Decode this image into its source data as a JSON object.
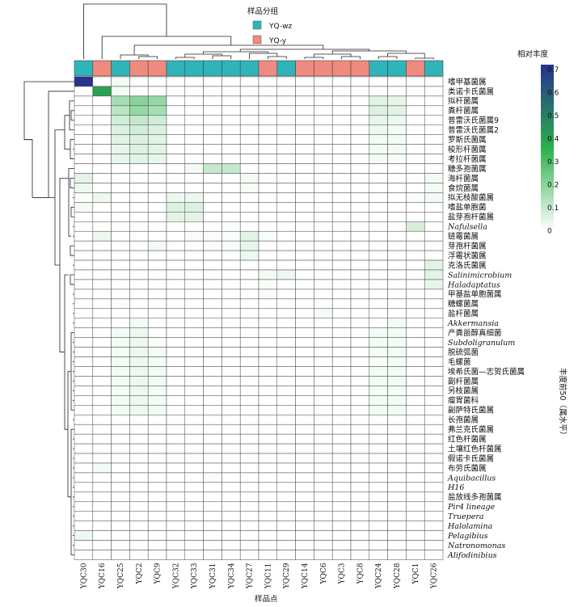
{
  "chart_data": {
    "type": "heatmap",
    "title": "",
    "xlabel": "样品点",
    "ylabel": "丰度前50（属水平）",
    "legend_group": {
      "title": "样品分组",
      "entries": [
        {
          "label": "YQ-wz",
          "color": "#2fb5b9"
        },
        {
          "label": "YQ-y",
          "color": "#ef8a7f"
        }
      ]
    },
    "colorbar": {
      "title": "相对丰度",
      "ticks": [
        "0.7",
        "0.6",
        "0.5",
        "0.4",
        "0.3",
        "0.2",
        "0.1",
        "0"
      ],
      "tick_values": [
        0.7,
        0.6,
        0.5,
        0.4,
        0.3,
        0.2,
        0.1,
        0
      ],
      "range": [
        0,
        0.72
      ],
      "colors": [
        "#ffffff",
        "#2ab04a",
        "#27318f"
      ]
    },
    "columns": [
      "YQC30",
      "YQC16",
      "YQC25",
      "YQC2",
      "YQC9",
      "YQC32",
      "YQC33",
      "YQC31",
      "YQC34",
      "YQC27",
      "YQC11",
      "YQC29",
      "YQC14",
      "YQC6",
      "YQC3",
      "YQC8",
      "YQC24",
      "YQC28",
      "YQC1",
      "YQC26"
    ],
    "column_groups": [
      "YQ-wz",
      "YQ-y",
      "YQ-wz",
      "YQ-y",
      "YQ-y",
      "YQ-wz",
      "YQ-wz",
      "YQ-wz",
      "YQ-wz",
      "YQ-wz",
      "YQ-y",
      "YQ-wz",
      "YQ-y",
      "YQ-y",
      "YQ-y",
      "YQ-y",
      "YQ-wz",
      "YQ-wz",
      "YQ-y",
      "YQ-wz"
    ],
    "rows": [
      {
        "label": "嗜甲基菌属",
        "italic": false
      },
      {
        "label": "类诺卡氏菌属",
        "italic": false
      },
      {
        "label": "拟杆菌属",
        "italic": false
      },
      {
        "label": "粪杆菌属",
        "italic": false
      },
      {
        "label": "普雷沃氏菌属9",
        "italic": false
      },
      {
        "label": "普雷沃氏菌属2",
        "italic": false
      },
      {
        "label": "罗斯氏菌属",
        "italic": false
      },
      {
        "label": "梭形杆菌属",
        "italic": false
      },
      {
        "label": "考拉杆菌属",
        "italic": false
      },
      {
        "label": "糖多孢菌属",
        "italic": false
      },
      {
        "label": "海杆菌属",
        "italic": false
      },
      {
        "label": "食烷菌属",
        "italic": false
      },
      {
        "label": "拟无枝酸菌属",
        "italic": false
      },
      {
        "label": "嗜盐单胞菌",
        "italic": false
      },
      {
        "label": "盐芽孢杆菌属",
        "italic": false
      },
      {
        "label": "Nafulsella",
        "italic": true
      },
      {
        "label": "链霉菌属",
        "italic": false
      },
      {
        "label": "芽孢杆菌属",
        "italic": false
      },
      {
        "label": "浮霉状菌属",
        "italic": false
      },
      {
        "label": "克洛氏菌属",
        "italic": false
      },
      {
        "label": "Salinimicrobium",
        "italic": true
      },
      {
        "label": "Haladaptatus",
        "italic": true
      },
      {
        "label": "甲基盐单胞菌属",
        "italic": false
      },
      {
        "label": "糖螺菌属",
        "italic": false
      },
      {
        "label": "盐杆菌属",
        "italic": false
      },
      {
        "label": "Akkermansia",
        "italic": true
      },
      {
        "label": "产粪甾醇真细菌",
        "italic": false
      },
      {
        "label": "Subdoligranulum",
        "italic": true
      },
      {
        "label": "脱硫弧菌",
        "italic": false
      },
      {
        "label": "毛螺菌",
        "italic": false
      },
      {
        "label": "埃希氏菌—志贺氏菌属",
        "italic": false
      },
      {
        "label": "副杆菌属",
        "italic": false
      },
      {
        "label": "另枝菌属",
        "italic": false
      },
      {
        "label": "瘤胃菌科",
        "italic": false
      },
      {
        "label": "副萨特氏菌属",
        "italic": false
      },
      {
        "label": "长孢菌属",
        "italic": false
      },
      {
        "label": "弗兰克氏菌属",
        "italic": false
      },
      {
        "label": "红色杆菌属",
        "italic": false
      },
      {
        "label": "土壤红色杆菌属",
        "italic": false
      },
      {
        "label": "假诺卡氏菌属",
        "italic": false
      },
      {
        "label": "布劳氏菌属",
        "italic": false
      },
      {
        "label": "Aquibacillus",
        "italic": true
      },
      {
        "label": "H16",
        "italic": true
      },
      {
        "label": "盐放线多孢菌属",
        "italic": false
      },
      {
        "label": "Pir4 lineage",
        "italic": true
      },
      {
        "label": "Truepera",
        "italic": true
      },
      {
        "label": "Halolamina",
        "italic": true
      },
      {
        "label": "Pelagibius",
        "italic": true
      },
      {
        "label": "Natronomonas",
        "italic": true
      },
      {
        "label": "Alifodinibius",
        "italic": true
      }
    ],
    "values": [
      [
        0.72,
        0,
        0.02,
        0,
        0,
        0,
        0,
        0,
        0,
        0,
        0,
        0,
        0,
        0,
        0,
        0,
        0,
        0,
        0,
        0
      ],
      [
        0,
        0.4,
        0.02,
        0,
        0,
        0,
        0,
        0,
        0,
        0,
        0,
        0,
        0,
        0,
        0,
        0,
        0,
        0,
        0,
        0
      ],
      [
        0,
        0,
        0.15,
        0.2,
        0.18,
        0,
        0,
        0,
        0,
        0,
        0,
        0,
        0,
        0,
        0,
        0,
        0.05,
        0.04,
        0,
        0
      ],
      [
        0,
        0,
        0.12,
        0.18,
        0.15,
        0,
        0,
        0,
        0,
        0,
        0,
        0,
        0,
        0,
        0,
        0,
        0.06,
        0.05,
        0,
        0
      ],
      [
        0,
        0,
        0.08,
        0.1,
        0.08,
        0,
        0,
        0,
        0,
        0,
        0,
        0,
        0,
        0,
        0,
        0,
        0.04,
        0.03,
        0,
        0
      ],
      [
        0,
        0,
        0.06,
        0.08,
        0.06,
        0,
        0,
        0,
        0,
        0,
        0,
        0,
        0,
        0,
        0,
        0,
        0.03,
        0.02,
        0,
        0
      ],
      [
        0,
        0,
        0.05,
        0.06,
        0.05,
        0,
        0,
        0,
        0,
        0,
        0,
        0,
        0,
        0,
        0,
        0,
        0.02,
        0.02,
        0,
        0
      ],
      [
        0,
        0,
        0.04,
        0.06,
        0.05,
        0,
        0,
        0,
        0,
        0,
        0,
        0,
        0,
        0,
        0,
        0,
        0.02,
        0.02,
        0,
        0
      ],
      [
        0,
        0,
        0.04,
        0.05,
        0.04,
        0,
        0,
        0,
        0,
        0,
        0,
        0,
        0,
        0,
        0,
        0,
        0.02,
        0.01,
        0,
        0
      ],
      [
        0,
        0,
        0,
        0,
        0,
        0,
        0.02,
        0.1,
        0.1,
        0,
        0,
        0,
        0,
        0,
        0,
        0,
        0,
        0,
        0,
        0
      ],
      [
        0.05,
        0,
        0,
        0,
        0,
        0,
        0,
        0,
        0,
        0.02,
        0,
        0,
        0,
        0,
        0,
        0,
        0,
        0,
        0,
        0.02
      ],
      [
        0.03,
        0,
        0,
        0,
        0,
        0,
        0,
        0,
        0,
        0.01,
        0,
        0,
        0,
        0,
        0,
        0,
        0,
        0,
        0,
        0.02
      ],
      [
        0.01,
        0.03,
        0,
        0,
        0,
        0.03,
        0.03,
        0,
        0,
        0,
        0,
        0,
        0,
        0,
        0,
        0,
        0,
        0,
        0.01,
        0.02
      ],
      [
        0.02,
        0,
        0,
        0,
        0,
        0.06,
        0.06,
        0,
        0,
        0,
        0,
        0,
        0,
        0,
        0,
        0,
        0,
        0,
        0,
        0
      ],
      [
        0,
        0,
        0,
        0,
        0,
        0.05,
        0.05,
        0,
        0,
        0,
        0,
        0,
        0,
        0,
        0,
        0,
        0,
        0,
        0,
        0
      ],
      [
        0,
        0,
        0,
        0,
        0,
        0,
        0,
        0,
        0,
        0,
        0,
        0,
        0,
        0,
        0,
        0,
        0,
        0,
        0.07,
        0
      ],
      [
        0,
        0.03,
        0,
        0,
        0,
        0,
        0.01,
        0.01,
        0.01,
        0.05,
        0.01,
        0,
        0,
        0,
        0,
        0,
        0,
        0,
        0,
        0
      ],
      [
        0,
        0,
        0,
        0,
        0.02,
        0,
        0,
        0.01,
        0.01,
        0.04,
        0,
        0,
        0,
        0,
        0,
        0,
        0,
        0,
        0,
        0
      ],
      [
        0,
        0,
        0,
        0,
        0,
        0,
        0,
        0,
        0,
        0.03,
        0,
        0,
        0,
        0,
        0,
        0,
        0,
        0,
        0,
        0
      ],
      [
        0,
        0,
        0,
        0,
        0,
        0,
        0,
        0,
        0,
        0,
        0,
        0,
        0,
        0,
        0,
        0,
        0,
        0,
        0,
        0.05
      ],
      [
        0,
        0,
        0,
        0,
        0,
        0,
        0,
        0,
        0,
        0,
        0.02,
        0.03,
        0,
        0,
        0,
        0,
        0,
        0,
        0,
        0.05
      ],
      [
        0,
        0,
        0,
        0,
        0,
        0,
        0,
        0,
        0,
        0,
        0.01,
        0,
        0,
        0,
        0,
        0,
        0,
        0,
        0,
        0.04
      ],
      [
        0,
        0,
        0,
        0,
        0,
        0,
        0,
        0,
        0,
        0,
        0.01,
        0,
        0,
        0,
        0,
        0,
        0,
        0,
        0,
        0
      ],
      [
        0,
        0,
        0.01,
        0,
        0,
        0,
        0,
        0,
        0,
        0,
        0,
        0,
        0,
        0,
        0,
        0,
        0,
        0,
        0,
        0
      ],
      [
        0,
        0,
        0,
        0,
        0,
        0,
        0,
        0,
        0,
        0,
        0,
        0,
        0,
        0.02,
        0,
        0,
        0,
        0,
        0,
        0
      ],
      [
        0,
        0,
        0,
        0.02,
        0,
        0,
        0,
        0,
        0,
        0,
        0,
        0,
        0,
        0,
        0,
        0,
        0,
        0.02,
        0,
        0
      ],
      [
        0,
        0,
        0.02,
        0.03,
        0,
        0,
        0,
        0,
        0,
        0,
        0,
        0,
        0,
        0,
        0,
        0,
        0.02,
        0.02,
        0,
        0
      ],
      [
        0,
        0,
        0.02,
        0.03,
        0.01,
        0,
        0,
        0,
        0,
        0,
        0,
        0,
        0,
        0,
        0,
        0,
        0.02,
        0.02,
        0,
        0
      ],
      [
        0,
        0,
        0.02,
        0.03,
        0.02,
        0,
        0,
        0,
        0,
        0,
        0,
        0,
        0,
        0,
        0,
        0,
        0.02,
        0.02,
        0,
        0
      ],
      [
        0,
        0,
        0.02,
        0.03,
        0.02,
        0,
        0,
        0,
        0,
        0,
        0,
        0,
        0,
        0,
        0,
        0,
        0.01,
        0.02,
        0,
        0
      ],
      [
        0,
        0,
        0.02,
        0.03,
        0.02,
        0,
        0,
        0,
        0,
        0,
        0,
        0,
        0,
        0,
        0,
        0,
        0.02,
        0.02,
        0,
        0
      ],
      [
        0,
        0,
        0.02,
        0.03,
        0.02,
        0,
        0,
        0,
        0,
        0,
        0,
        0,
        0,
        0,
        0,
        0,
        0.02,
        0.02,
        0,
        0
      ],
      [
        0,
        0,
        0.02,
        0.03,
        0.02,
        0,
        0,
        0,
        0,
        0,
        0,
        0,
        0,
        0,
        0,
        0,
        0.02,
        0.02,
        0,
        0
      ],
      [
        0,
        0,
        0.02,
        0.03,
        0.02,
        0,
        0,
        0,
        0,
        0,
        0,
        0,
        0,
        0,
        0,
        0,
        0.02,
        0.02,
        0,
        0
      ],
      [
        0,
        0,
        0.02,
        0.03,
        0.02,
        0,
        0,
        0,
        0,
        0,
        0,
        0,
        0,
        0,
        0,
        0,
        0.02,
        0.02,
        0,
        0
      ],
      [
        0,
        0,
        0,
        0,
        0,
        0,
        0,
        0,
        0,
        0,
        0,
        0,
        0,
        0,
        0,
        0,
        0,
        0,
        0,
        0
      ],
      [
        0,
        0,
        0,
        0,
        0,
        0,
        0,
        0,
        0,
        0,
        0,
        0,
        0,
        0,
        0,
        0,
        0,
        0,
        0,
        0
      ],
      [
        0,
        0,
        0,
        0,
        0,
        0,
        0,
        0,
        0,
        0,
        0,
        0,
        0,
        0,
        0,
        0,
        0,
        0,
        0,
        0
      ],
      [
        0,
        0,
        0,
        0,
        0,
        0,
        0,
        0,
        0,
        0,
        0,
        0,
        0,
        0,
        0,
        0,
        0,
        0,
        0,
        0
      ],
      [
        0,
        0,
        0,
        0,
        0,
        0,
        0,
        0,
        0,
        0,
        0,
        0,
        0,
        0,
        0,
        0,
        0,
        0,
        0,
        0
      ],
      [
        0,
        0.02,
        0,
        0,
        0,
        0,
        0,
        0,
        0,
        0,
        0,
        0,
        0,
        0,
        0,
        0,
        0,
        0,
        0,
        0
      ],
      [
        0,
        0,
        0,
        0,
        0,
        0,
        0,
        0.01,
        0,
        0,
        0,
        0,
        0,
        0,
        0,
        0,
        0,
        0,
        0,
        0
      ],
      [
        0,
        0,
        0,
        0,
        0,
        0,
        0,
        0,
        0,
        0,
        0,
        0,
        0,
        0,
        0,
        0,
        0,
        0,
        0,
        0
      ],
      [
        0,
        0,
        0,
        0,
        0,
        0,
        0,
        0,
        0,
        0,
        0,
        0,
        0,
        0,
        0,
        0,
        0,
        0,
        0,
        0
      ],
      [
        0,
        0,
        0,
        0,
        0,
        0,
        0,
        0,
        0,
        0,
        0,
        0,
        0,
        0,
        0,
        0,
        0,
        0,
        0,
        0
      ],
      [
        0,
        0,
        0,
        0,
        0,
        0,
        0,
        0,
        0,
        0,
        0,
        0,
        0,
        0,
        0,
        0,
        0,
        0,
        0,
        0
      ],
      [
        0,
        0,
        0,
        0,
        0,
        0,
        0,
        0,
        0,
        0,
        0,
        0,
        0,
        0,
        0,
        0,
        0,
        0,
        0,
        0
      ],
      [
        0.03,
        0,
        0,
        0,
        0,
        0,
        0,
        0,
        0,
        0,
        0,
        0,
        0,
        0,
        0,
        0,
        0,
        0,
        0,
        0
      ],
      [
        0,
        0,
        0,
        0,
        0,
        0,
        0,
        0,
        0,
        0,
        0,
        0,
        0,
        0,
        0,
        0,
        0,
        0,
        0,
        0
      ],
      [
        0,
        0,
        0,
        0,
        0,
        0,
        0,
        0,
        0,
        0,
        0,
        0,
        0,
        0,
        0,
        0,
        0,
        0,
        0,
        0
      ]
    ]
  }
}
